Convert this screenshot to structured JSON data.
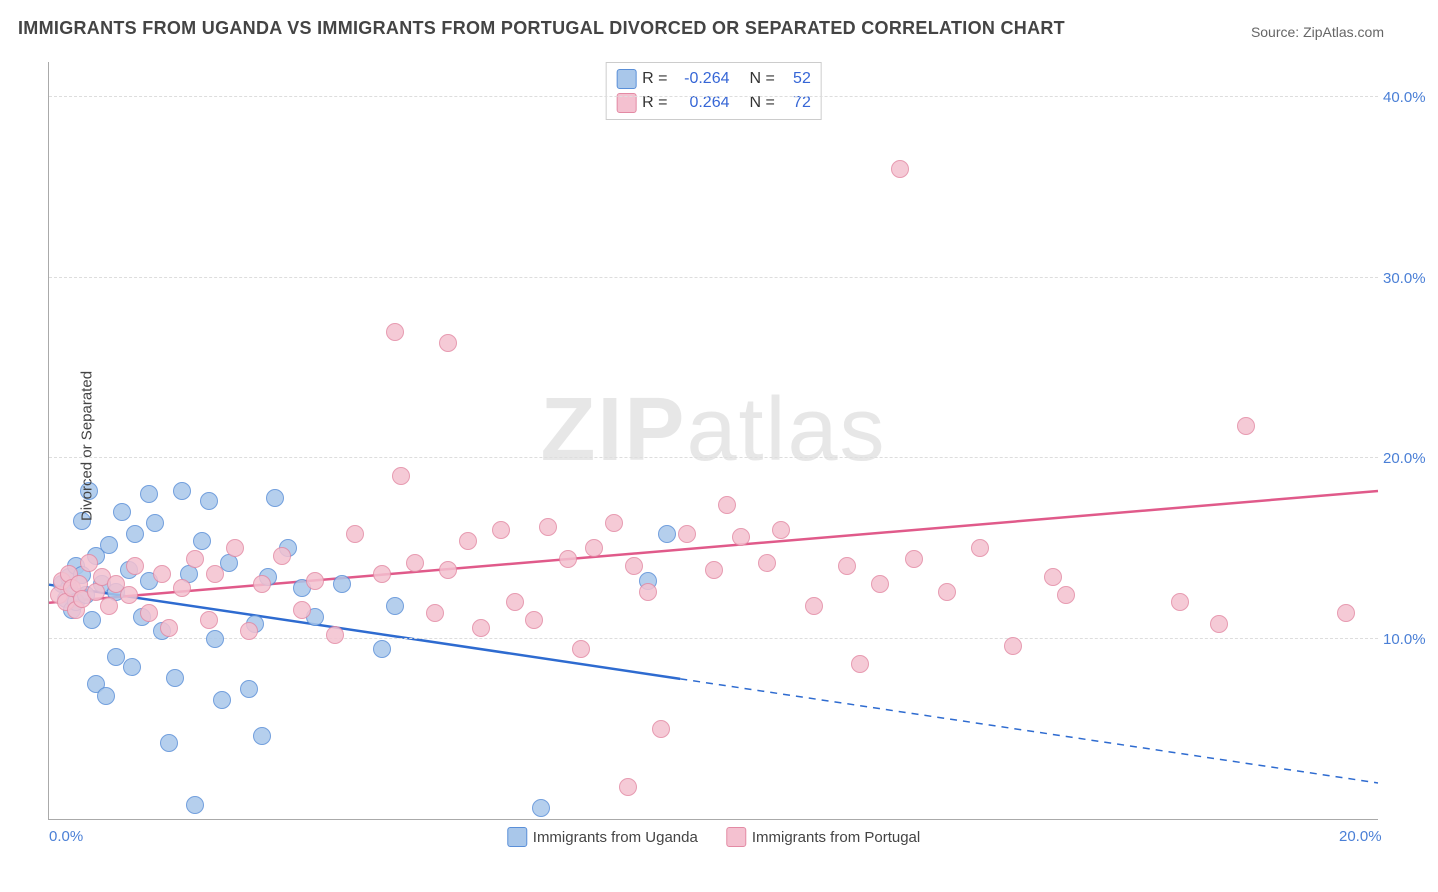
{
  "title": "IMMIGRANTS FROM UGANDA VS IMMIGRANTS FROM PORTUGAL DIVORCED OR SEPARATED CORRELATION CHART",
  "source": "Source: ZipAtlas.com",
  "ylabel": "Divorced or Separated",
  "watermark_a": "ZIP",
  "watermark_b": "atlas",
  "chart": {
    "type": "scatter",
    "xlim": [
      0.0,
      20.0
    ],
    "ylim": [
      0.0,
      42.0
    ],
    "xticks": [
      {
        "value": 0.0,
        "label": "0.0%"
      },
      {
        "value": 20.0,
        "label": "20.0%"
      }
    ],
    "yticks": [
      {
        "value": 10.0,
        "label": "10.0%"
      },
      {
        "value": 20.0,
        "label": "20.0%"
      },
      {
        "value": 30.0,
        "label": "30.0%"
      },
      {
        "value": 40.0,
        "label": "40.0%"
      }
    ],
    "grid_color": "#dddddd",
    "background_color": "#ffffff",
    "axis_color": "#aaaaaa",
    "tick_color": "#4a7fd6",
    "point_radius": 9,
    "point_border_width": 1.5,
    "point_fill_opacity": 0.35,
    "series": [
      {
        "name": "Immigrants from Uganda",
        "color_stroke": "#5a8fd8",
        "color_fill": "#a9c7ea",
        "trend_color": "#2e6bd0",
        "trend_width": 2.5,
        "R": "-0.264",
        "N": "52",
        "trend": {
          "x0": 0.0,
          "y0": 13.0,
          "x1": 20.0,
          "y1": 2.0,
          "x_solid_end": 9.5
        },
        "points": [
          [
            0.2,
            13.0
          ],
          [
            0.25,
            12.2
          ],
          [
            0.3,
            12.8
          ],
          [
            0.3,
            13.4
          ],
          [
            0.35,
            11.6
          ],
          [
            0.4,
            14.0
          ],
          [
            0.4,
            12.0
          ],
          [
            0.5,
            16.5
          ],
          [
            0.5,
            13.5
          ],
          [
            0.55,
            12.4
          ],
          [
            0.6,
            18.2
          ],
          [
            0.65,
            11.0
          ],
          [
            0.7,
            14.6
          ],
          [
            0.7,
            7.5
          ],
          [
            0.8,
            13.0
          ],
          [
            0.85,
            6.8
          ],
          [
            0.9,
            15.2
          ],
          [
            1.0,
            12.6
          ],
          [
            1.0,
            9.0
          ],
          [
            1.1,
            17.0
          ],
          [
            1.2,
            13.8
          ],
          [
            1.25,
            8.4
          ],
          [
            1.3,
            15.8
          ],
          [
            1.4,
            11.2
          ],
          [
            1.5,
            18.0
          ],
          [
            1.5,
            13.2
          ],
          [
            1.6,
            16.4
          ],
          [
            1.7,
            10.4
          ],
          [
            1.8,
            4.2
          ],
          [
            1.9,
            7.8
          ],
          [
            2.0,
            18.2
          ],
          [
            2.1,
            13.6
          ],
          [
            2.2,
            0.8
          ],
          [
            2.3,
            15.4
          ],
          [
            2.4,
            17.6
          ],
          [
            2.5,
            10.0
          ],
          [
            2.6,
            6.6
          ],
          [
            2.7,
            14.2
          ],
          [
            3.0,
            7.2
          ],
          [
            3.1,
            10.8
          ],
          [
            3.2,
            4.6
          ],
          [
            3.3,
            13.4
          ],
          [
            3.4,
            17.8
          ],
          [
            3.6,
            15.0
          ],
          [
            3.8,
            12.8
          ],
          [
            4.0,
            11.2
          ],
          [
            4.4,
            13.0
          ],
          [
            5.0,
            9.4
          ],
          [
            5.2,
            11.8
          ],
          [
            7.4,
            0.6
          ],
          [
            9.0,
            13.2
          ],
          [
            9.3,
            15.8
          ]
        ]
      },
      {
        "name": "Immigrants from Portugal",
        "color_stroke": "#e38aa4",
        "color_fill": "#f4c1d0",
        "trend_color": "#e05a8a",
        "trend_width": 2.5,
        "R": "0.264",
        "N": "72",
        "trend": {
          "x0": 0.0,
          "y0": 12.0,
          "x1": 20.0,
          "y1": 18.2,
          "x_solid_end": 20.0
        },
        "points": [
          [
            0.15,
            12.4
          ],
          [
            0.2,
            13.2
          ],
          [
            0.25,
            12.0
          ],
          [
            0.3,
            13.6
          ],
          [
            0.35,
            12.8
          ],
          [
            0.4,
            11.6
          ],
          [
            0.45,
            13.0
          ],
          [
            0.5,
            12.2
          ],
          [
            0.6,
            14.2
          ],
          [
            0.7,
            12.6
          ],
          [
            0.8,
            13.4
          ],
          [
            0.9,
            11.8
          ],
          [
            1.0,
            13.0
          ],
          [
            1.2,
            12.4
          ],
          [
            1.3,
            14.0
          ],
          [
            1.5,
            11.4
          ],
          [
            1.7,
            13.6
          ],
          [
            1.8,
            10.6
          ],
          [
            2.0,
            12.8
          ],
          [
            2.2,
            14.4
          ],
          [
            2.4,
            11.0
          ],
          [
            2.5,
            13.6
          ],
          [
            2.8,
            15.0
          ],
          [
            3.0,
            10.4
          ],
          [
            3.2,
            13.0
          ],
          [
            3.5,
            14.6
          ],
          [
            3.8,
            11.6
          ],
          [
            4.0,
            13.2
          ],
          [
            4.3,
            10.2
          ],
          [
            4.6,
            15.8
          ],
          [
            5.0,
            13.6
          ],
          [
            5.2,
            27.0
          ],
          [
            5.3,
            19.0
          ],
          [
            5.5,
            14.2
          ],
          [
            5.8,
            11.4
          ],
          [
            6.0,
            26.4
          ],
          [
            6.0,
            13.8
          ],
          [
            6.3,
            15.4
          ],
          [
            6.5,
            10.6
          ],
          [
            6.8,
            16.0
          ],
          [
            7.0,
            12.0
          ],
          [
            7.3,
            11.0
          ],
          [
            7.5,
            16.2
          ],
          [
            7.8,
            14.4
          ],
          [
            8.0,
            9.4
          ],
          [
            8.2,
            15.0
          ],
          [
            8.5,
            16.4
          ],
          [
            8.7,
            1.8
          ],
          [
            8.8,
            14.0
          ],
          [
            9.0,
            12.6
          ],
          [
            9.2,
            5.0
          ],
          [
            9.6,
            15.8
          ],
          [
            10.0,
            13.8
          ],
          [
            10.2,
            17.4
          ],
          [
            10.4,
            15.6
          ],
          [
            10.8,
            14.2
          ],
          [
            11.0,
            16.0
          ],
          [
            11.5,
            11.8
          ],
          [
            12.0,
            14.0
          ],
          [
            12.2,
            8.6
          ],
          [
            12.5,
            13.0
          ],
          [
            12.8,
            36.0
          ],
          [
            13.0,
            14.4
          ],
          [
            13.5,
            12.6
          ],
          [
            14.0,
            15.0
          ],
          [
            14.5,
            9.6
          ],
          [
            15.1,
            13.4
          ],
          [
            15.3,
            12.4
          ],
          [
            17.0,
            12.0
          ],
          [
            17.6,
            10.8
          ],
          [
            18.0,
            21.8
          ],
          [
            19.5,
            11.4
          ]
        ]
      }
    ]
  },
  "bottom_legend": [
    {
      "swatch_fill": "#a9c7ea",
      "swatch_stroke": "#5a8fd8",
      "label": "Immigrants from Uganda"
    },
    {
      "swatch_fill": "#f4c1d0",
      "swatch_stroke": "#e38aa4",
      "label": "Immigrants from Portugal"
    }
  ]
}
